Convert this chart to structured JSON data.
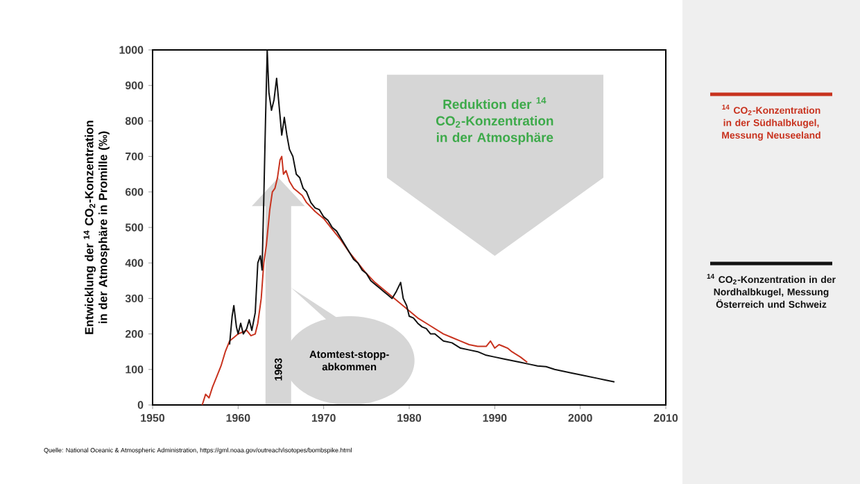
{
  "chart_data": {
    "type": "line",
    "ylabel": "Entwicklung der $^{14}$ CO$_{2}$-Konzentration in der Atmosphäre in Promille (‰)",
    "xlim": [
      1950,
      2010
    ],
    "xticks": [
      1950,
      1960,
      1970,
      1980,
      1990,
      2000,
      2010
    ],
    "ylim": [
      0,
      1000
    ],
    "yticks": [
      0,
      100,
      200,
      300,
      400,
      500,
      600,
      700,
      800,
      900,
      1000
    ],
    "legend": "right",
    "series": [
      {
        "name": "$^{14}$ CO$_{2}$-Konzentration in der Südhalbkugel, Messung Neuseeland",
        "color": "#c8321e",
        "x": [
          1955.8,
          1956.2,
          1956.6,
          1957,
          1957.5,
          1958,
          1958.5,
          1959,
          1959.5,
          1960,
          1960.5,
          1961,
          1961.5,
          1962,
          1962.3,
          1962.7,
          1963,
          1963.3,
          1963.7,
          1964,
          1964.3,
          1964.6,
          1964.9,
          1965.1,
          1965.3,
          1965.6,
          1966,
          1966.5,
          1967,
          1967.5,
          1968,
          1969,
          1970,
          1971,
          1972,
          1973,
          1974,
          1975,
          1976,
          1977,
          1978,
          1979,
          1980,
          1981,
          1982,
          1983,
          1984,
          1985,
          1986,
          1987,
          1988,
          1989,
          1989.5,
          1990,
          1990.5,
          1991,
          1991.5,
          1992,
          1993,
          1993.8
        ],
        "values": [
          0,
          30,
          20,
          50,
          80,
          110,
          150,
          180,
          190,
          200,
          205,
          210,
          195,
          200,
          230,
          300,
          400,
          450,
          550,
          600,
          610,
          640,
          690,
          700,
          650,
          660,
          630,
          610,
          600,
          590,
          570,
          545,
          525,
          495,
          465,
          430,
          400,
          370,
          345,
          325,
          305,
          285,
          265,
          245,
          230,
          215,
          200,
          190,
          180,
          170,
          165,
          165,
          180,
          160,
          170,
          165,
          160,
          150,
          135,
          120
        ]
      },
      {
        "name": "$^{14}$ CO$_{2}$-Konzentration in der Nordhalbkugel, Messung Österreich und Schweiz",
        "color": "#111111",
        "x": [
          1959.0,
          1959.3,
          1959.5,
          1959.8,
          1960.0,
          1960.3,
          1960.6,
          1961.0,
          1961.3,
          1961.6,
          1962.0,
          1962.3,
          1962.6,
          1962.8,
          1963.0,
          1963.2,
          1963.4,
          1963.6,
          1963.9,
          1964.2,
          1964.5,
          1964.8,
          1965.1,
          1965.4,
          1965.7,
          1966.0,
          1966.4,
          1966.8,
          1967.2,
          1967.6,
          1968,
          1968.5,
          1969,
          1969.5,
          1970,
          1970.5,
          1971,
          1971.5,
          1972,
          1972.5,
          1973,
          1973.5,
          1974,
          1974.5,
          1975,
          1975.5,
          1976,
          1976.5,
          1977,
          1977.5,
          1978,
          1978.5,
          1979,
          1979.3,
          1979.7,
          1980,
          1980.5,
          1981,
          1981.5,
          1982,
          1982.5,
          1983,
          1984,
          1985,
          1986,
          1987,
          1988,
          1989,
          1990,
          1991,
          1992,
          1993,
          1994,
          1995,
          1996,
          1997,
          1998,
          1999,
          2000,
          2001,
          2002,
          2003,
          2004
        ],
        "values": [
          170,
          250,
          280,
          220,
          200,
          230,
          200,
          215,
          240,
          210,
          260,
          400,
          420,
          380,
          580,
          800,
          1000,
          880,
          830,
          860,
          920,
          840,
          760,
          810,
          760,
          720,
          700,
          650,
          640,
          610,
          600,
          570,
          555,
          550,
          530,
          520,
          500,
          490,
          470,
          450,
          430,
          410,
          400,
          380,
          370,
          350,
          340,
          330,
          320,
          310,
          300,
          320,
          345,
          300,
          280,
          250,
          245,
          230,
          220,
          215,
          200,
          200,
          180,
          175,
          160,
          155,
          150,
          140,
          135,
          130,
          125,
          120,
          115,
          110,
          108,
          100,
          95,
          90,
          85,
          80,
          75,
          70,
          65
        ]
      }
    ],
    "annotations": [
      "Reduktion der $^{14}$ CO$_{2}$-Konzentration in der Atmosphäre",
      "Atomtest-stopp-abkommen",
      "1963",
      "Quelle: National Oceanic & Atmospheric Administration, https://gml.noaa.gov/outreach/isotopes/bombspike.html"
    ]
  }
}
